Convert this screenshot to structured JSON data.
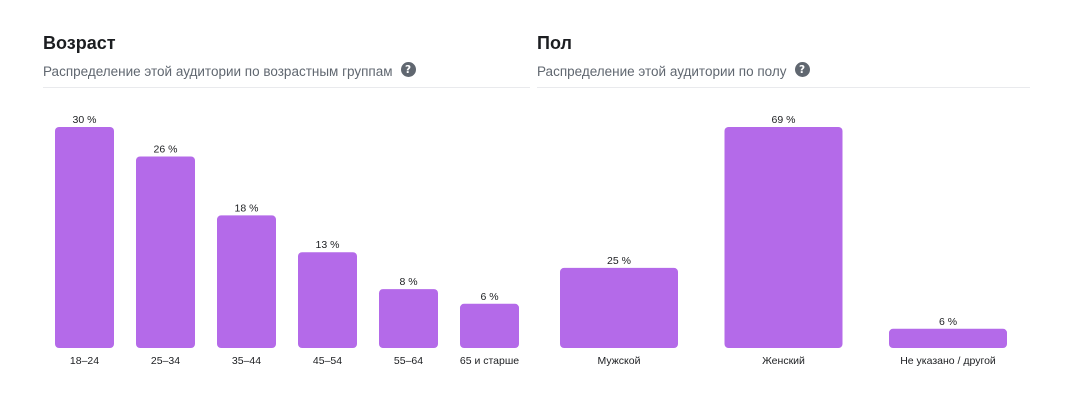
{
  "colors": {
    "bar": "#b46ae9"
  },
  "age": {
    "title": "Возраст",
    "subtitle": "Распределение этой аудитории по возрастным группам",
    "help_icon": "question-circle-icon",
    "help_glyph": "?"
  },
  "gender": {
    "title": "Пол",
    "subtitle": "Распределение этой аудитории по полу",
    "help_icon": "question-circle-icon",
    "help_glyph": "?"
  },
  "chart_data": [
    {
      "type": "bar",
      "title": "Возраст",
      "subtitle": "Распределение этой аудитории по возрастным группам",
      "categories": [
        "18–24",
        "25–34",
        "35–44",
        "45–54",
        "55–64",
        "65 и старше"
      ],
      "values": [
        30,
        26,
        18,
        13,
        8,
        6
      ],
      "value_labels": [
        "30 %",
        "26 %",
        "18 %",
        "13 %",
        "8 %",
        "6 %"
      ],
      "unit": "%",
      "ylim": [
        0,
        30
      ],
      "grid": false
    },
    {
      "type": "bar",
      "title": "Пол",
      "subtitle": "Распределение этой аудитории по полу",
      "categories": [
        "Мужской",
        "Женский",
        "Не указано / другой"
      ],
      "values": [
        25,
        69,
        6
      ],
      "value_labels": [
        "25 %",
        "69 %",
        "6 %"
      ],
      "unit": "%",
      "ylim": [
        0,
        69
      ],
      "grid": false
    }
  ]
}
